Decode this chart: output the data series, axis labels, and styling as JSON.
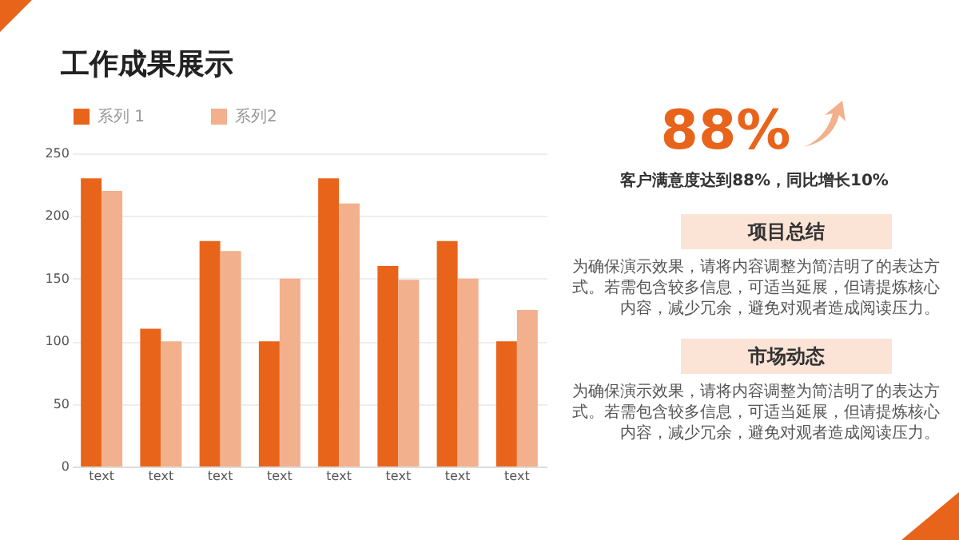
{
  "chart_data": [
    {
      "type": "bar",
      "title": "工作成果展示",
      "categories": [
        "text",
        "text",
        "text",
        "text",
        "text",
        "text",
        "text",
        "text"
      ],
      "series": [
        {
          "name": "系列 1",
          "color": "#e8641b",
          "values": [
            230,
            110,
            180,
            100,
            230,
            160,
            180,
            100
          ]
        },
        {
          "name": "系列2",
          "color": "#f2b08c",
          "values": [
            220,
            100,
            172,
            150,
            210,
            149,
            150,
            125
          ]
        }
      ],
      "ylim": [
        0,
        250
      ],
      "yticks": [
        0,
        50,
        100,
        150,
        200,
        250
      ],
      "grid": "y",
      "legend": "top"
    },
    {
      "type": "other",
      "annotations": [
        "88%",
        "客户满意度达到88%，同比增长10%",
        "项目总结",
        "为确保演示效果，请将内容调整为简洁明了的表达方式。若需包含较多信息，可适当延展，但请提炼核心内容，减少冗余，避免对观者造成阅读压力。",
        "市场动态",
        "为确保演示效果，请将内容调整为简洁明了的表达方式。若需包含较多信息，可适当延展，但请提炼核心内容，减少冗余，避免对观者造成阅读压力。"
      ]
    }
  ]
}
